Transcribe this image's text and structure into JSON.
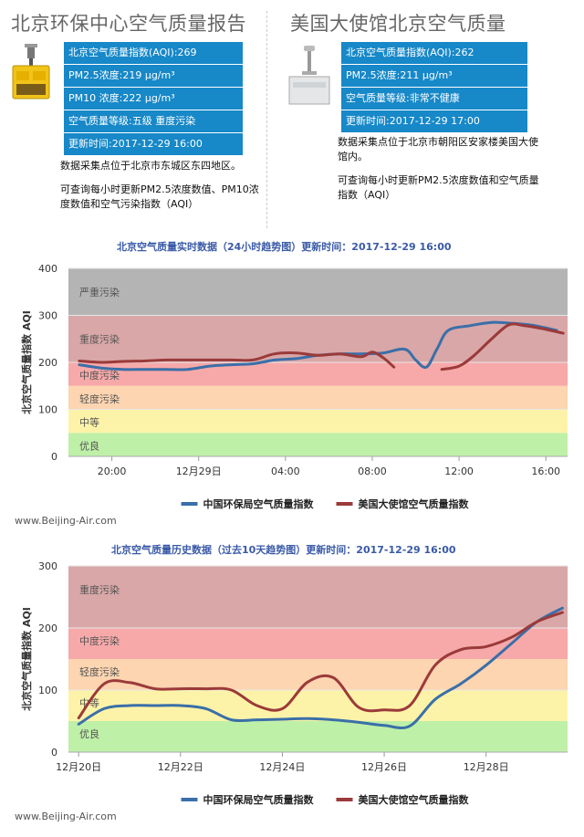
{
  "left_panel": {
    "title": "北京环保中心空气质量报告",
    "rows": [
      "北京空气质量指数(AQI):269",
      "PM2.5浓度:219  μg/m³",
      "PM10 浓度:222  μg/m³",
      "空气质量等级:五级 重度污染",
      "更新时间:2017-12-29 16:00"
    ],
    "desc1": "数据采集点位于北京市东城区东四地区。",
    "desc2": "可查询每小时更新PM2.5浓度数值、PM10浓度数值和空气污染指数（AQI）"
  },
  "right_panel": {
    "title": "美国大使馆北京空气质量",
    "rows": [
      "北京空气质量指数(AQI):262",
      "PM2.5浓度:211  μg/m³",
      "空气质量等级:非常不健康",
      "更新时间:2017-12-29 17:00"
    ],
    "desc1": "数据采集点位于北京市朝阳区安家楼美国大使馆内。",
    "desc2": "可查询每小时更新PM2.5浓度数值和空气质量指数（AQI）"
  },
  "watermark": "www.Beijing-Air.com",
  "colors": {
    "china_series": "#3a6fa8",
    "us_series": "#9b3a3a",
    "band_severe": "#b4b4b4",
    "band_heavy": "#d9a7a7",
    "band_moderate_pollution": "#f7a9a9",
    "band_light": "#fdd5b0",
    "band_fair": "#fdf3a8",
    "band_good": "#bff0a8",
    "info_row": "#1788c8"
  },
  "chart_data": [
    {
      "type": "line",
      "title": "北京空气质量实时数据（24小时趋势图）更新时间：2017-12-29 16:00",
      "ylabel": "北京空气质量指数 AQI",
      "ylim": [
        0,
        400
      ],
      "yticks": [
        0,
        100,
        200,
        300,
        400
      ],
      "xlim": [
        18,
        41
      ],
      "xticks": [
        {
          "x": 20,
          "label": "20:00"
        },
        {
          "x": 24,
          "label": "12月29日"
        },
        {
          "x": 28,
          "label": "04:00"
        },
        {
          "x": 32,
          "label": "08:00"
        },
        {
          "x": 36,
          "label": "12:00"
        },
        {
          "x": 40,
          "label": "16:00"
        }
      ],
      "bands": [
        {
          "label": "优良",
          "from": 0,
          "to": 50,
          "color": "#bff0a8"
        },
        {
          "label": "中等",
          "from": 50,
          "to": 100,
          "color": "#fdf3a8"
        },
        {
          "label": "轻度污染",
          "from": 100,
          "to": 150,
          "color": "#fdd5b0"
        },
        {
          "label": "中度污染",
          "from": 150,
          "to": 200,
          "color": "#f7a9a9"
        },
        {
          "label": "重度污染",
          "from": 200,
          "to": 300,
          "color": "#d9a7a7"
        },
        {
          "label": "严重污染",
          "from": 300,
          "to": 400,
          "color": "#b4b4b4"
        }
      ],
      "series": [
        {
          "name": "中国环保局空气质量指数",
          "x": [
            18.5,
            19.5,
            20.5,
            21.5,
            22.5,
            23.5,
            24.5,
            25.5,
            26.5,
            27.5,
            28.5,
            29.5,
            30.5,
            31.5,
            32.5,
            33.5,
            34.0,
            34.5,
            35.0,
            35.5,
            36.5,
            37.5,
            38.5,
            39.5,
            40.5
          ],
          "values": [
            195,
            188,
            185,
            185,
            185,
            185,
            192,
            195,
            197,
            205,
            208,
            215,
            218,
            218,
            220,
            228,
            205,
            190,
            230,
            268,
            278,
            285,
            283,
            278,
            268
          ]
        },
        {
          "name": "美国大使馆空气质量指数",
          "x": [
            18.5,
            19.5,
            20.5,
            21.5,
            22.5,
            23.5,
            24.5,
            25.5,
            26.5,
            27.5,
            28.5,
            29.5,
            30.5,
            31.5,
            32.0,
            32.5,
            33.0,
            null,
            35.2,
            36.0,
            36.7,
            37.5,
            38.3,
            39.0,
            39.8,
            40.8
          ],
          "values": [
            203,
            200,
            202,
            203,
            205,
            205,
            205,
            205,
            205,
            218,
            220,
            215,
            218,
            212,
            222,
            210,
            190,
            null,
            185,
            192,
            215,
            250,
            280,
            278,
            272,
            262
          ]
        }
      ]
    },
    {
      "type": "line",
      "title": "北京空气质量历史数据（过去10天趋势图）更新时间：2017-12-29 16:00",
      "ylabel": "北京空气质量指数 AQI",
      "ylim": [
        0,
        300
      ],
      "yticks": [
        0,
        100,
        200,
        300
      ],
      "xlim": [
        19.8,
        29.6
      ],
      "xticks": [
        {
          "x": 20,
          "label": "12月20日"
        },
        {
          "x": 22,
          "label": "12月22日"
        },
        {
          "x": 24,
          "label": "12月24日"
        },
        {
          "x": 26,
          "label": "12月26日"
        },
        {
          "x": 28,
          "label": "12月28日"
        }
      ],
      "bands": [
        {
          "label": "优良",
          "from": 0,
          "to": 50,
          "color": "#bff0a8"
        },
        {
          "label": "中等",
          "from": 50,
          "to": 100,
          "color": "#fdf3a8"
        },
        {
          "label": "轻度污染",
          "from": 100,
          "to": 150,
          "color": "#fdd5b0"
        },
        {
          "label": "中度污染",
          "from": 150,
          "to": 200,
          "color": "#f7a9a9"
        },
        {
          "label": "重度污染",
          "from": 200,
          "to": 300,
          "color": "#d9a7a7"
        }
      ],
      "series": [
        {
          "name": "中国环保局空气质量指数",
          "x": [
            20,
            20.5,
            21,
            21.5,
            22,
            22.5,
            23,
            23.5,
            24,
            24.5,
            25,
            25.5,
            26,
            26.5,
            27,
            27.5,
            28,
            28.5,
            29,
            29.5
          ],
          "values": [
            45,
            70,
            75,
            75,
            75,
            70,
            52,
            52,
            53,
            54,
            52,
            48,
            43,
            42,
            85,
            110,
            140,
            175,
            210,
            232
          ]
        },
        {
          "name": "美国大使馆空气质量指数",
          "x": [
            20,
            20.5,
            21,
            21.5,
            22,
            22.5,
            23,
            23.5,
            24,
            24.5,
            25,
            25.5,
            26,
            26.5,
            27,
            27.5,
            28,
            28.5,
            29,
            29.5
          ],
          "values": [
            55,
            110,
            112,
            102,
            102,
            102,
            100,
            75,
            70,
            113,
            120,
            72,
            68,
            75,
            140,
            165,
            170,
            185,
            210,
            225
          ]
        }
      ]
    }
  ]
}
